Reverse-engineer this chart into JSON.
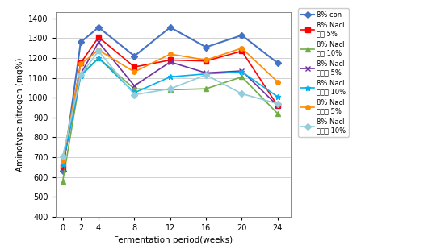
{
  "x": [
    0,
    2,
    4,
    8,
    12,
    16,
    20,
    24
  ],
  "series": [
    {
      "label": "8% con",
      "color": "#4472C4",
      "marker": "D",
      "markersize": 4,
      "linewidth": 1.5,
      "values": [
        630,
        1280,
        1355,
        1210,
        1355,
        1255,
        1315,
        1175
      ]
    },
    {
      "label": "8% Nacl\n함조 5%",
      "color": "#FF0000",
      "marker": "s",
      "markersize": 4,
      "linewidth": 1.2,
      "values": [
        650,
        1175,
        1305,
        1155,
        1190,
        1185,
        1235,
        960
      ]
    },
    {
      "label": "8% Nacl\n함조 10%",
      "color": "#70AD47",
      "marker": "^",
      "markersize": 4,
      "linewidth": 1.2,
      "values": [
        580,
        1115,
        1200,
        1045,
        1040,
        1045,
        1105,
        920
      ]
    },
    {
      "label": "8% Nacl\n질면초 5%",
      "color": "#7030A0",
      "marker": "x",
      "markersize": 4,
      "linewidth": 1.2,
      "values": [
        660,
        1120,
        1280,
        1060,
        1180,
        1125,
        1135,
        960
      ]
    },
    {
      "label": "8% Nacl\n질면조 10%",
      "color": "#00B0F0",
      "marker": "*",
      "markersize": 5,
      "linewidth": 1.2,
      "values": [
        665,
        1110,
        1200,
        1025,
        1105,
        1120,
        1130,
        1005
      ]
    },
    {
      "label": "8% Nacl\n나문재 5%",
      "color": "#FF8C00",
      "marker": "o",
      "markersize": 4,
      "linewidth": 1.2,
      "values": [
        685,
        1170,
        1240,
        1130,
        1220,
        1190,
        1250,
        1080
      ]
    },
    {
      "label": "8% Nacl\n나문재 10%",
      "color": "#92CDDC",
      "marker": "D",
      "markersize": 4,
      "linewidth": 1.2,
      "values": [
        705,
        1115,
        1235,
        1015,
        1045,
        1115,
        1020,
        970
      ]
    }
  ],
  "xlabel": "Fermentation period(weeks)",
  "ylabel": "Aminotype nitrogen (mg%)",
  "xlim": [
    -0.8,
    25.5
  ],
  "ylim": [
    400,
    1430
  ],
  "yticks": [
    400,
    500,
    600,
    700,
    800,
    900,
    1000,
    1100,
    1200,
    1300,
    1400
  ],
  "xticks": [
    0,
    2,
    4,
    8,
    12,
    16,
    20,
    24
  ],
  "grid_color": "#C0C0C0",
  "background_color": "#FFFFFF"
}
